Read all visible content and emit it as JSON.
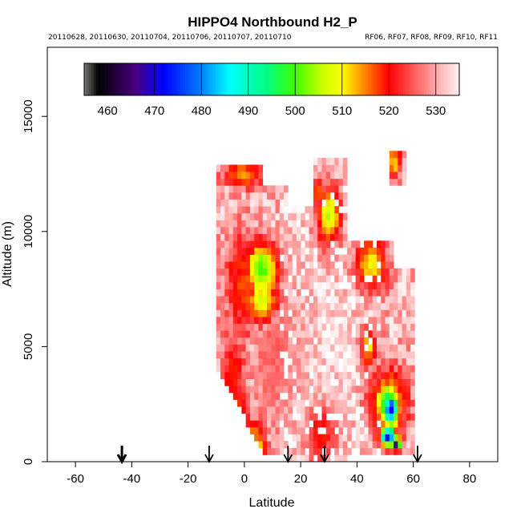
{
  "header": {
    "title": "HIPPO4 Northbound H2_P",
    "dates": "20110628, 20110630, 20110704, 20110706, 20110707, 20110710",
    "flights": "RF06, RF07, RF08, RF09, RF10, RF11"
  },
  "chart_data": {
    "type": "heatmap",
    "title": "HIPPO4 Northbound H2_P",
    "xlabel": "Latitude",
    "ylabel": "Altitude (m)",
    "xlim": [
      -70,
      90
    ],
    "ylim": [
      0,
      18000
    ],
    "x_ticks": [
      -60,
      -40,
      -20,
      0,
      20,
      40,
      60,
      80
    ],
    "y_ticks": [
      0,
      5000,
      10000,
      15000
    ],
    "colorbar": {
      "ticks": [
        460,
        470,
        480,
        490,
        500,
        510,
        520,
        530
      ],
      "range": [
        455,
        535
      ],
      "stops": [
        {
          "value": 455,
          "color": "#777777"
        },
        {
          "value": 458,
          "color": "#000000"
        },
        {
          "value": 466,
          "color": "#4b0082"
        },
        {
          "value": 472,
          "color": "#0000ff"
        },
        {
          "value": 480,
          "color": "#0080ff"
        },
        {
          "value": 486,
          "color": "#00ffff"
        },
        {
          "value": 494,
          "color": "#00ff80"
        },
        {
          "value": 500,
          "color": "#40ff00"
        },
        {
          "value": 506,
          "color": "#ccff00"
        },
        {
          "value": 510,
          "color": "#ffff00"
        },
        {
          "value": 515,
          "color": "#ff8000"
        },
        {
          "value": 520,
          "color": "#ff0000"
        },
        {
          "value": 525,
          "color": "#ff5555"
        },
        {
          "value": 530,
          "color": "#ffaaaa"
        },
        {
          "value": 535,
          "color": "#fff0f0"
        }
      ]
    },
    "profile_markers": [
      {
        "lat": -43.5,
        "bold": true
      },
      {
        "lat": -12.5,
        "bold": false
      },
      {
        "lat": 15.5,
        "bold": false
      },
      {
        "lat": 28.5,
        "bold": false
      },
      {
        "lat": 61.5,
        "bold": false
      }
    ],
    "blobs": [
      {
        "x": -4,
        "y": 3800,
        "sx": 3,
        "sy": 1400,
        "v": 519
      },
      {
        "x": -2,
        "y": 2200,
        "sx": 3,
        "sy": 1000,
        "v": 518
      },
      {
        "x": 3,
        "y": 900,
        "sx": 3,
        "sy": 600,
        "v": 512
      },
      {
        "x": 5,
        "y": 500,
        "sx": 2,
        "sy": 300,
        "v": 503
      },
      {
        "x": 6,
        "y": 8300,
        "sx": 4,
        "sy": 900,
        "v": 500
      },
      {
        "x": 6,
        "y": 7000,
        "sx": 4,
        "sy": 600,
        "v": 506
      },
      {
        "x": 0,
        "y": 7800,
        "sx": 5,
        "sy": 1600,
        "v": 517
      },
      {
        "x": 0,
        "y": 12500,
        "sx": 5,
        "sy": 400,
        "v": 513
      },
      {
        "x": 13,
        "y": 12500,
        "sx": 2,
        "sy": 300,
        "v": 518
      },
      {
        "x": 30,
        "y": 10700,
        "sx": 3,
        "sy": 900,
        "v": 505
      },
      {
        "x": 26,
        "y": 11700,
        "sx": 2,
        "sy": 500,
        "v": 516
      },
      {
        "x": 45,
        "y": 8600,
        "sx": 4,
        "sy": 800,
        "v": 509
      },
      {
        "x": 44,
        "y": 5000,
        "sx": 2,
        "sy": 600,
        "v": 510
      },
      {
        "x": 27,
        "y": 1200,
        "sx": 4,
        "sy": 900,
        "v": 519
      },
      {
        "x": 52,
        "y": 2300,
        "sx": 2,
        "sy": 500,
        "v": 472
      },
      {
        "x": 51,
        "y": 2500,
        "sx": 3,
        "sy": 700,
        "v": 492
      },
      {
        "x": 51,
        "y": 2500,
        "sx": 5,
        "sy": 1100,
        "v": 509
      },
      {
        "x": 51,
        "y": 1100,
        "sx": 2,
        "sy": 300,
        "v": 470
      },
      {
        "x": 54,
        "y": 800,
        "sx": 1,
        "sy": 200,
        "v": 463
      },
      {
        "x": 53,
        "y": 13000,
        "sx": 2,
        "sy": 500,
        "v": 510
      },
      {
        "x": 11,
        "y": 4500,
        "sx": 6,
        "sy": 2500,
        "v": 526
      }
    ]
  }
}
